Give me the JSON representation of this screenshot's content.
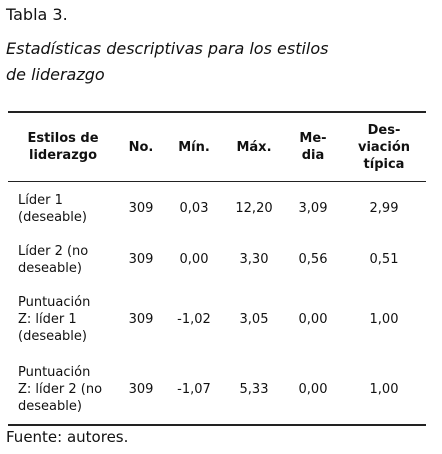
{
  "header": {
    "title": "Tabla 3.",
    "subtitle": "Estadísticas descriptivas para los estilos\nde liderazgo"
  },
  "table": {
    "columns": [
      "Estilos de\nliderazgo",
      "No.",
      "Mín.",
      "Máx.",
      "Me-\ndia",
      "Des-\nviación\ntípica"
    ],
    "rows": [
      [
        "Líder 1\n(deseable)",
        "309",
        "0,03",
        "12,20",
        "3,09",
        "2,99"
      ],
      [
        "Líder 2 (no\ndeseable)",
        "309",
        "0,00",
        "3,30",
        "0,56",
        "0,51"
      ],
      [
        "Puntuación\nZ: líder 1\n(deseable)",
        "309",
        "-1,02",
        "3,05",
        "0,00",
        "1,00"
      ],
      [
        "Puntuación\nZ: líder 2 (no\ndeseable)",
        "309",
        "-1,07",
        "5,33",
        "0,00",
        "1,00"
      ]
    ]
  },
  "footer": {
    "source": "Fuente: autores."
  }
}
